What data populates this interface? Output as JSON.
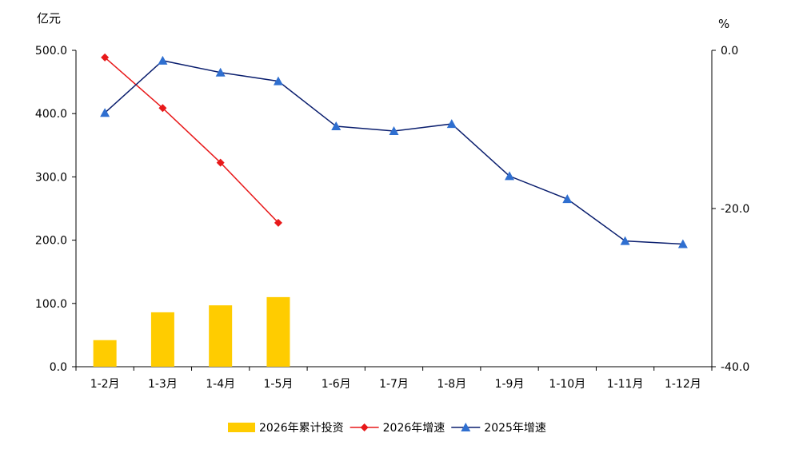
{
  "chart_data": {
    "type": "bar+line",
    "categories": [
      "1-2月",
      "1-3月",
      "1-4月",
      "1-5月",
      "1-6月",
      "1-7月",
      "1-8月",
      "1-9月",
      "1-10月",
      "1-11月",
      "1-12月"
    ],
    "left_axis": {
      "unit": "亿元",
      "range": [
        0,
        500
      ],
      "ticks": [
        "0.0",
        "100.0",
        "200.0",
        "300.0",
        "400.0",
        "500.0"
      ],
      "tick_values": [
        0,
        100,
        200,
        300,
        400,
        500
      ]
    },
    "right_axis": {
      "unit": "%",
      "range": [
        -40,
        0
      ],
      "ticks": [
        "0.0",
        "-20.0",
        "-40.0"
      ],
      "tick_values": [
        0,
        -20,
        -40
      ]
    },
    "series": [
      {
        "name": "2026年累计投资",
        "type": "bar",
        "axis": "left",
        "color": "#FFCC00",
        "values": [
          42,
          86,
          97,
          110,
          null,
          null,
          null,
          null,
          null,
          null,
          null
        ]
      },
      {
        "name": "2026年增速",
        "type": "line",
        "axis": "right",
        "color": "#E8191A",
        "marker": "diamond",
        "values": [
          -0.9,
          -7.3,
          -14.2,
          -21.8,
          null,
          null,
          null,
          null,
          null,
          null,
          null
        ]
      },
      {
        "name": "2025年增速",
        "type": "line",
        "axis": "right",
        "color": "#0A1E6E",
        "marker_color": "#2F6FD0",
        "marker": "triangle",
        "values": [
          -7.9,
          -1.3,
          -2.8,
          -3.9,
          -9.6,
          -10.2,
          -9.3,
          -15.9,
          -18.8,
          -24.1,
          -24.5
        ]
      }
    ],
    "legend_position": "bottom",
    "grid": false
  }
}
